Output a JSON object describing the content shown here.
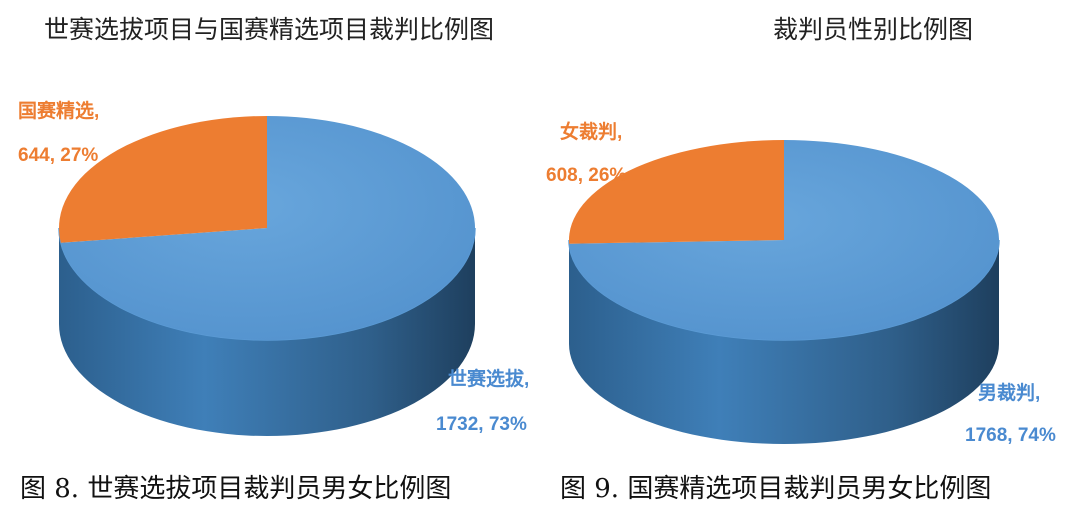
{
  "chart_data": [
    {
      "type": "pie",
      "title": "世赛选拔项目与国赛精选项目裁判比例图",
      "caption": "图 8. 世赛选拔项目裁判员男女比例图",
      "slices": [
        {
          "name": "世赛选拔,",
          "value": 1732,
          "value_label": "1732, 73%",
          "percent": 73,
          "color": "#5B9BD5"
        },
        {
          "name": "国赛精选,",
          "value": 644,
          "value_label": "644, 27%",
          "percent": 27,
          "color": "#ED7D31"
        }
      ]
    },
    {
      "type": "pie",
      "title": "裁判员性别比例图",
      "caption": "图 9.  国赛精选项目裁判员男女比例图",
      "slices": [
        {
          "name": "男裁判,",
          "value": 1768,
          "value_label": "1768, 74%",
          "percent": 74,
          "color": "#5B9BD5"
        },
        {
          "name": "女裁判,",
          "value": 608,
          "value_label": "608, 26%",
          "percent": 26,
          "color": "#ED7D31"
        }
      ]
    }
  ]
}
